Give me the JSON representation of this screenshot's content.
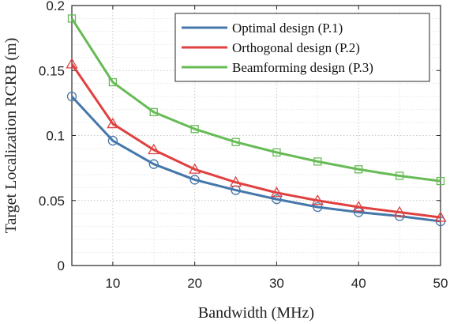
{
  "chart_data": {
    "type": "line",
    "xlabel": "Bandwidth (MHz)",
    "ylabel": "Target Localization RCRB (m)",
    "xlim": [
      5,
      50
    ],
    "ylim": [
      0,
      0.2
    ],
    "xticks": [
      10,
      20,
      30,
      40,
      50
    ],
    "xtick_labels": [
      "10",
      "20",
      "30",
      "40",
      "50"
    ],
    "yticks": [
      0,
      0.05,
      0.1,
      0.15,
      0.2
    ],
    "ytick_labels": [
      "0",
      "0.05",
      "0.1",
      "0.15",
      "0.2"
    ],
    "grid": "dotted major and minor",
    "legend_position": "top-right",
    "x": [
      5,
      10,
      15,
      20,
      25,
      30,
      35,
      40,
      45,
      50
    ],
    "series": [
      {
        "name": "Optimal design (P.1)",
        "color": "#4477aa",
        "marker": "circle",
        "values": [
          0.13,
          0.096,
          0.078,
          0.066,
          0.058,
          0.051,
          0.045,
          0.041,
          0.038,
          0.034
        ]
      },
      {
        "name": "Orthogonal design (P.2)",
        "color": "#e04040",
        "marker": "triangle",
        "values": [
          0.155,
          0.109,
          0.089,
          0.074,
          0.064,
          0.056,
          0.05,
          0.045,
          0.041,
          0.037
        ]
      },
      {
        "name": "Beamforming design (P.3)",
        "color": "#66bb55",
        "marker": "square",
        "values": [
          0.19,
          0.141,
          0.118,
          0.105,
          0.095,
          0.087,
          0.08,
          0.074,
          0.069,
          0.065
        ]
      }
    ]
  }
}
